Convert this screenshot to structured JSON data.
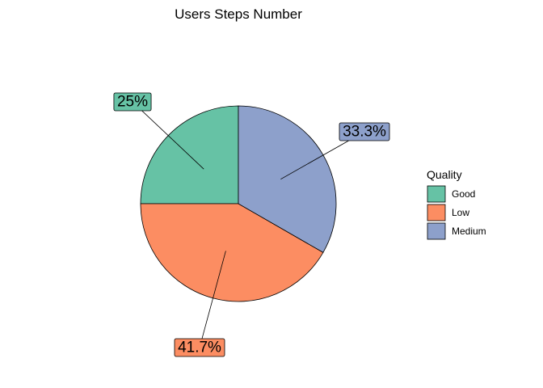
{
  "chart_data": {
    "type": "pie",
    "title": "Users Steps Number",
    "legend_title": "Quality",
    "legend_position": "right",
    "categories": [
      "Good",
      "Low",
      "Medium"
    ],
    "values": [
      25,
      41.7,
      33.3
    ],
    "labels": [
      "25%",
      "41.7%",
      "33.3%"
    ],
    "colors": [
      "#66C2A5",
      "#FC8D62",
      "#8DA0CB"
    ]
  }
}
